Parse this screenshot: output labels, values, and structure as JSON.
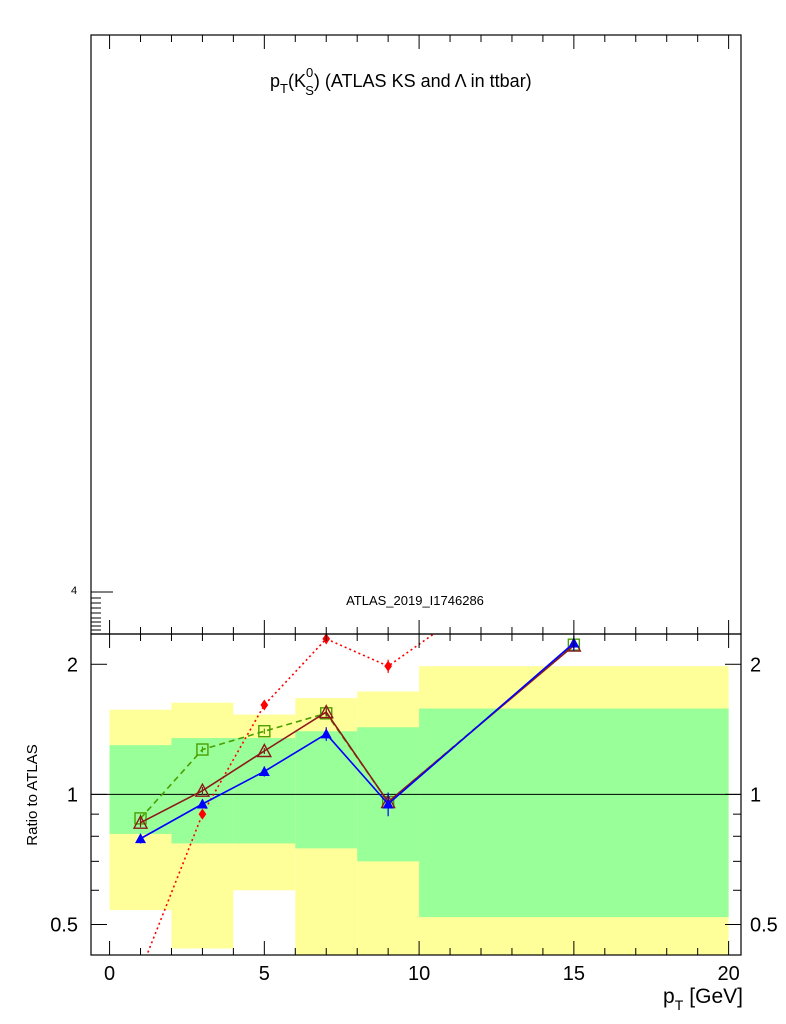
{
  "chart_data": {
    "type": "line",
    "title": "p_T(K^0_S) (ATLAS KS and Λ in ttbar)",
    "title_parts": {
      "p": "p",
      "T": "T",
      "K": "K",
      "sup0": "0",
      "subS": "S",
      "rest": ") (ATLAS KS and",
      "lam": "Λ",
      "tail": " in ttbar)",
      "open": "("
    },
    "analysis_label": "ATLAS_2019_I1746286",
    "upper_axis_tick_label": "4",
    "xlabel": "p_T [GeV]",
    "xlabel_parts": {
      "p": "p",
      "T": "T",
      "unit": "[GeV]"
    },
    "ylabel": "Ratio to ATLAS",
    "xlim": [
      -0.6,
      20.4
    ],
    "ylim": [
      0.425,
      2.35
    ],
    "y_log_scale": true,
    "x_ticks": [
      0,
      5,
      10,
      15,
      20
    ],
    "y_ticks": [
      0.5,
      1,
      2
    ],
    "reference_line": 1,
    "bands": {
      "edges": [
        0,
        2,
        4,
        6,
        8,
        10,
        20
      ],
      "inner": {
        "color": "#99ff99",
        "low": [
          0.81,
          0.77,
          0.77,
          0.75,
          0.7,
          0.52
        ],
        "high": [
          1.3,
          1.35,
          1.35,
          1.4,
          1.43,
          1.58
        ]
      },
      "outer": {
        "color": "#ffff99",
        "low": [
          0.54,
          0.44,
          0.6,
          0.36,
          0.34,
          0.34
        ],
        "high": [
          1.57,
          1.63,
          1.53,
          1.67,
          1.73,
          1.98
        ]
      }
    },
    "series": [
      {
        "marker": "diamond-filled",
        "color": "#ff0000",
        "dash": "2,3",
        "x": [
          1,
          3,
          5,
          7,
          9,
          11
        ],
        "y": [
          0.39,
          0.9,
          1.61,
          2.29,
          1.98,
          2.5
        ],
        "err": [
          0.0,
          0.02,
          0.04,
          0.06,
          0.07,
          0.0
        ]
      },
      {
        "marker": "square-open",
        "color": "#4a9e00",
        "dash": "6,4",
        "x": [
          1,
          3,
          5,
          7,
          9,
          15
        ],
        "y": [
          0.88,
          1.27,
          1.4,
          1.54,
          0.96,
          2.22
        ],
        "err": [
          0.02,
          0.02,
          0.02,
          0.03,
          0.03,
          0.06
        ]
      },
      {
        "marker": "triangle-open",
        "color": "#8b1a1a",
        "dash": "",
        "x": [
          1,
          3,
          5,
          7,
          9,
          15
        ],
        "y": [
          0.86,
          1.02,
          1.26,
          1.55,
          0.96,
          2.21
        ],
        "err": [
          0.02,
          0.02,
          0.02,
          0.03,
          0.03,
          0.06
        ]
      },
      {
        "marker": "triangle-filled",
        "color": "#0000ff",
        "dash": "",
        "x": [
          1,
          3,
          5,
          7,
          9,
          15
        ],
        "y": [
          0.79,
          0.95,
          1.13,
          1.38,
          0.95,
          2.24
        ],
        "err": [
          0.02,
          0.02,
          0.03,
          0.05,
          0.06,
          0.09
        ]
      }
    ]
  }
}
